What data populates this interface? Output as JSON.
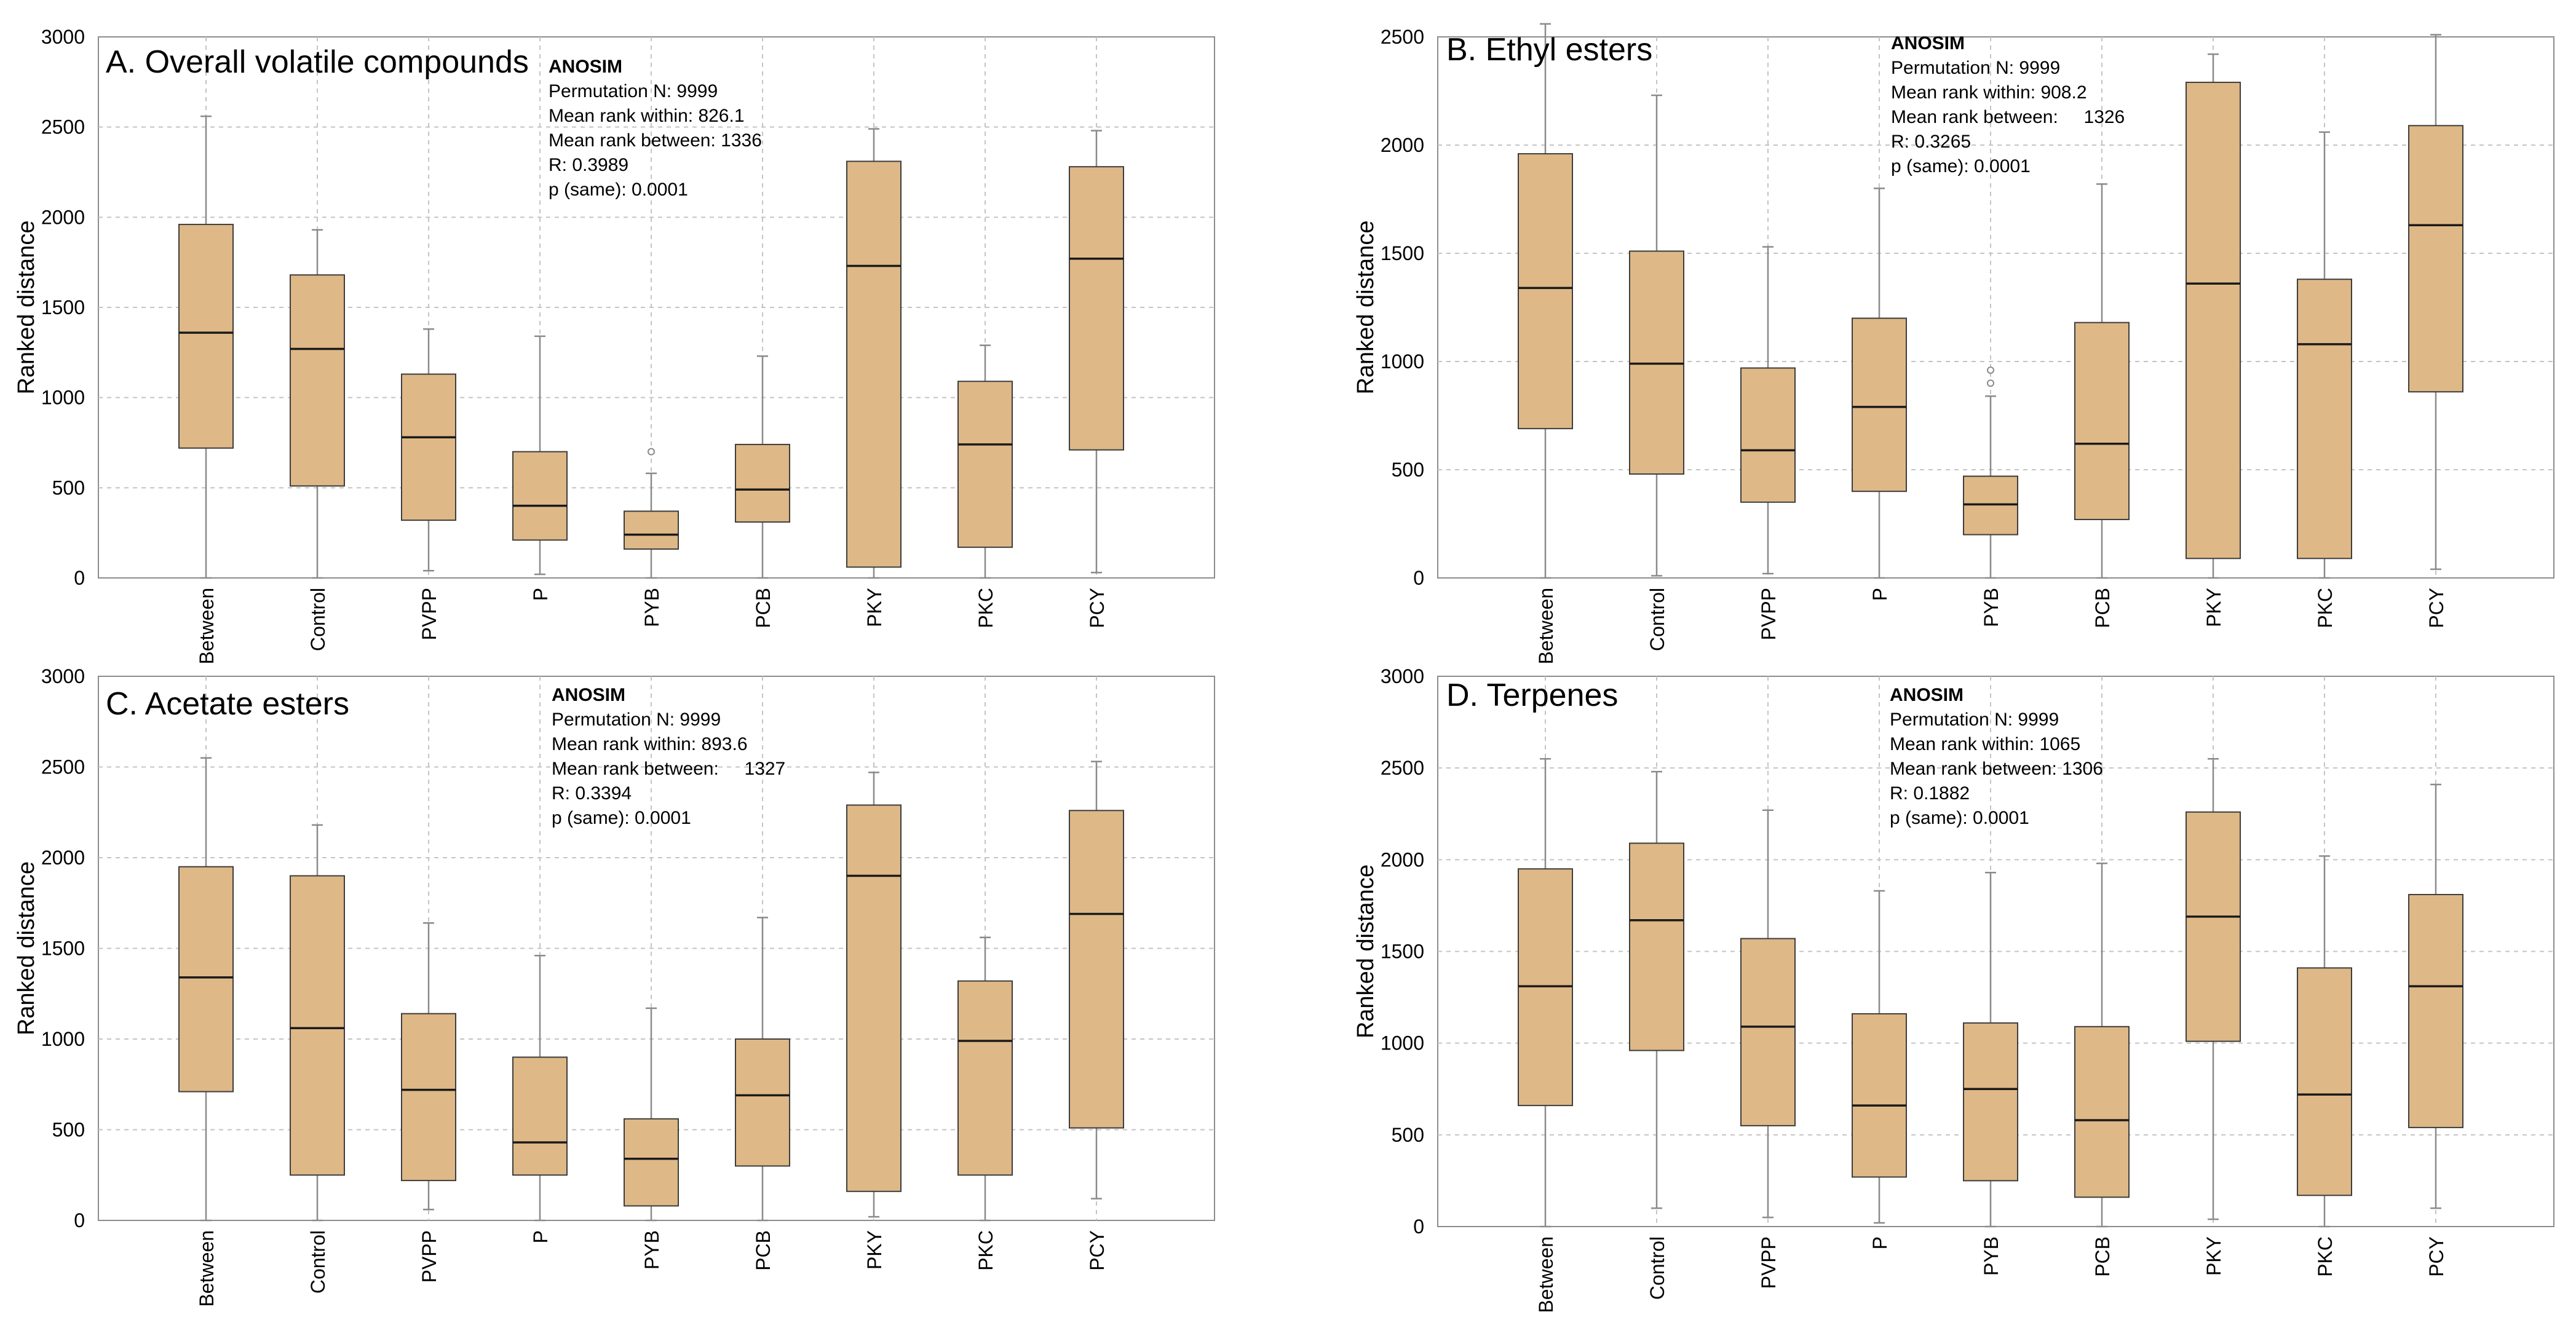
{
  "chart_data": [
    {
      "type": "box",
      "title": "A. Overall volatile compounds",
      "xlabel": "",
      "ylabel": "Ranked distance",
      "ylim": [
        0,
        3000
      ],
      "yticks": [
        0,
        500,
        1000,
        1500,
        2000,
        2500,
        3000
      ],
      "grid": true,
      "categories": [
        "Between",
        "Control",
        "PVPP",
        "P",
        "PYB",
        "PCB",
        "PKY",
        "PKC",
        "PCY"
      ],
      "boxes": [
        {
          "min": 0,
          "q1": 720,
          "median": 1360,
          "q3": 1960,
          "max": 2560,
          "outliers": []
        },
        {
          "min": 0,
          "q1": 510,
          "median": 1270,
          "q3": 1680,
          "max": 1930,
          "outliers": []
        },
        {
          "min": 40,
          "q1": 320,
          "median": 780,
          "q3": 1130,
          "max": 1380,
          "outliers": []
        },
        {
          "min": 20,
          "q1": 210,
          "median": 400,
          "q3": 700,
          "max": 1340,
          "outliers": []
        },
        {
          "min": 0,
          "q1": 160,
          "median": 240,
          "q3": 370,
          "max": 580,
          "outliers": [
            700
          ]
        },
        {
          "min": 0,
          "q1": 310,
          "median": 490,
          "q3": 740,
          "max": 1230,
          "outliers": []
        },
        {
          "min": 0,
          "q1": 60,
          "median": 1730,
          "q3": 2310,
          "max": 2490,
          "outliers": []
        },
        {
          "min": 0,
          "q1": 170,
          "median": 740,
          "q3": 1090,
          "max": 1290,
          "outliers": []
        },
        {
          "min": 30,
          "q1": 710,
          "median": 1770,
          "q3": 2280,
          "max": 2480,
          "outliers": []
        }
      ],
      "anosim": {
        "heading": "ANOSIM",
        "lines": [
          "Permutation N: 9999",
          "Mean rank within: 826.1",
          "Mean rank between: 1336",
          "R: 0.3989",
          "p (same): 0.0001"
        ]
      }
    },
    {
      "type": "box",
      "title": "B. Ethyl esters",
      "xlabel": "",
      "ylabel": "Ranked distance",
      "ylim": [
        0,
        2500
      ],
      "yticks": [
        0,
        500,
        1000,
        1500,
        2000,
        2500
      ],
      "grid": true,
      "categories": [
        "Between",
        "Control",
        "PVPP",
        "P",
        "PYB",
        "PCB",
        "PKY",
        "PKC",
        "PCY"
      ],
      "boxes": [
        {
          "min": 0,
          "q1": 690,
          "median": 1340,
          "q3": 1960,
          "max": 2560,
          "outliers": []
        },
        {
          "min": 10,
          "q1": 480,
          "median": 990,
          "q3": 1510,
          "max": 2230,
          "outliers": []
        },
        {
          "min": 20,
          "q1": 350,
          "median": 590,
          "q3": 970,
          "max": 1530,
          "outliers": []
        },
        {
          "min": 0,
          "q1": 400,
          "median": 790,
          "q3": 1200,
          "max": 1800,
          "outliers": []
        },
        {
          "min": 0,
          "q1": 200,
          "median": 340,
          "q3": 470,
          "max": 840,
          "outliers": [
            900,
            960
          ]
        },
        {
          "min": 0,
          "q1": 270,
          "median": 620,
          "q3": 1180,
          "max": 1820,
          "outliers": []
        },
        {
          "min": 0,
          "q1": 90,
          "median": 1360,
          "q3": 2290,
          "max": 2420,
          "outliers": []
        },
        {
          "min": 0,
          "q1": 90,
          "median": 1080,
          "q3": 1380,
          "max": 2060,
          "outliers": []
        },
        {
          "min": 40,
          "q1": 860,
          "median": 1630,
          "q3": 2090,
          "max": 2510,
          "outliers": []
        }
      ],
      "anosim": {
        "heading": "ANOSIM",
        "lines": [
          "Permutation N: 9999",
          "Mean rank within: 908.2",
          "Mean rank between:     1326",
          "R: 0.3265",
          "p (same): 0.0001"
        ]
      }
    },
    {
      "type": "box",
      "title": "C. Acetate esters",
      "xlabel": "",
      "ylabel": "Ranked distance",
      "ylim": [
        0,
        3000
      ],
      "yticks": [
        0,
        500,
        1000,
        1500,
        2000,
        2500,
        3000
      ],
      "grid": true,
      "categories": [
        "Between",
        "Control",
        "PVPP",
        "P",
        "PYB",
        "PCB",
        "PKY",
        "PKC",
        "PCY"
      ],
      "boxes": [
        {
          "min": 0,
          "q1": 710,
          "median": 1340,
          "q3": 1950,
          "max": 2550,
          "outliers": []
        },
        {
          "min": 0,
          "q1": 250,
          "median": 1060,
          "q3": 1900,
          "max": 2180,
          "outliers": []
        },
        {
          "min": 60,
          "q1": 220,
          "median": 720,
          "q3": 1140,
          "max": 1640,
          "outliers": []
        },
        {
          "min": 0,
          "q1": 250,
          "median": 430,
          "q3": 900,
          "max": 1460,
          "outliers": []
        },
        {
          "min": 0,
          "q1": 80,
          "median": 340,
          "q3": 560,
          "max": 1170,
          "outliers": []
        },
        {
          "min": 0,
          "q1": 300,
          "median": 690,
          "q3": 1000,
          "max": 1670,
          "outliers": []
        },
        {
          "min": 20,
          "q1": 160,
          "median": 1900,
          "q3": 2290,
          "max": 2470,
          "outliers": []
        },
        {
          "min": 0,
          "q1": 250,
          "median": 990,
          "q3": 1320,
          "max": 1560,
          "outliers": []
        },
        {
          "min": 120,
          "q1": 510,
          "median": 1690,
          "q3": 2260,
          "max": 2530,
          "outliers": []
        }
      ],
      "anosim": {
        "heading": "ANOSIM",
        "lines": [
          "Permutation N: 9999",
          "Mean rank within: 893.6",
          "Mean rank between:     1327",
          "R: 0.3394",
          "p (same): 0.0001"
        ]
      }
    },
    {
      "type": "box",
      "title": "D. Terpenes",
      "xlabel": "",
      "ylabel": "Ranked distance",
      "ylim": [
        0,
        3000
      ],
      "yticks": [
        0,
        500,
        1000,
        1500,
        2000,
        2500,
        3000
      ],
      "grid": true,
      "categories": [
        "Between",
        "Control",
        "PVPP",
        "P",
        "PYB",
        "PCB",
        "PKY",
        "PKC",
        "PCY"
      ],
      "boxes": [
        {
          "min": 0,
          "q1": 660,
          "median": 1310,
          "q3": 1950,
          "max": 2550,
          "outliers": []
        },
        {
          "min": 100,
          "q1": 960,
          "median": 1670,
          "q3": 2090,
          "max": 2480,
          "outliers": []
        },
        {
          "min": 50,
          "q1": 550,
          "median": 1090,
          "q3": 1570,
          "max": 2270,
          "outliers": []
        },
        {
          "min": 20,
          "q1": 270,
          "median": 660,
          "q3": 1160,
          "max": 1830,
          "outliers": []
        },
        {
          "min": 0,
          "q1": 250,
          "median": 750,
          "q3": 1110,
          "max": 1930,
          "outliers": []
        },
        {
          "min": 0,
          "q1": 160,
          "median": 580,
          "q3": 1090,
          "max": 1980,
          "outliers": []
        },
        {
          "min": 40,
          "q1": 1010,
          "median": 1690,
          "q3": 2260,
          "max": 2550,
          "outliers": []
        },
        {
          "min": 0,
          "q1": 170,
          "median": 720,
          "q3": 1410,
          "max": 2020,
          "outliers": []
        },
        {
          "min": 100,
          "q1": 540,
          "median": 1310,
          "q3": 1810,
          "max": 2410,
          "outliers": []
        }
      ],
      "anosim": {
        "heading": "ANOSIM",
        "lines": [
          "Permutation N: 9999",
          "Mean rank within: 1065",
          "Mean rank between: 1306",
          "R: 0.1882",
          "p (same): 0.0001"
        ]
      }
    }
  ],
  "colors": {
    "box_fill": "#deb887",
    "box_stroke": "#3d3d3d",
    "whisker": "#8a8a8a",
    "grid": "#c4c4c4",
    "frame": "#8c8c8c"
  }
}
